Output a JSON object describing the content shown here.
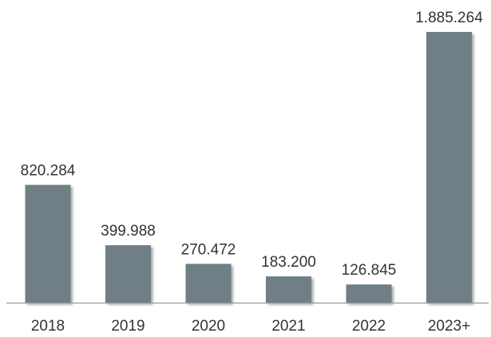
{
  "chart_data": {
    "type": "bar",
    "categories": [
      "2018",
      "2019",
      "2020",
      "2021",
      "2022",
      "2023+"
    ],
    "values": [
      820284,
      399988,
      270472,
      183200,
      126845,
      1885264
    ],
    "data_labels": [
      "820.284",
      "399.988",
      "270.472",
      "183.200",
      "126.845",
      "1.885.264"
    ],
    "title": "",
    "xlabel": "",
    "ylabel": "",
    "ylim": [
      0,
      1885264
    ],
    "grid": false,
    "legend": "none",
    "bar_color": "#6f7f85"
  }
}
